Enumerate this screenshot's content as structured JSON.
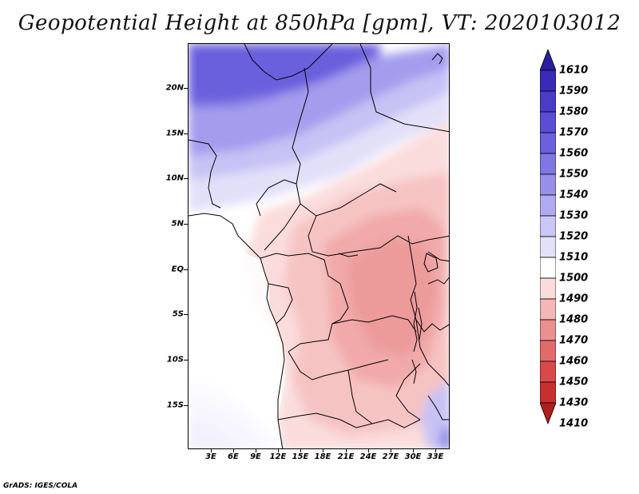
{
  "title": "Geopotential Height at 850hPa [gpm], VT: 2020103012",
  "credit": "GrADS: IGES/COLA",
  "map": {
    "region": "Central Africa",
    "lat_labels": [
      "20N",
      "15N",
      "10N",
      "5N",
      "EQ",
      "5S",
      "10S",
      "15S"
    ],
    "lat_values": [
      20,
      15,
      10,
      5,
      0,
      -5,
      -10,
      -15
    ],
    "lon_labels": [
      "3E",
      "6E",
      "9E",
      "12E",
      "15E",
      "18E",
      "21E",
      "24E",
      "27E",
      "30E",
      "33E"
    ],
    "lon_values": [
      3,
      6,
      9,
      12,
      15,
      18,
      21,
      24,
      27,
      30,
      33
    ],
    "lat_range": [
      -20,
      24.5
    ],
    "lon_range": [
      0.5,
      34.5
    ]
  },
  "colorbar": {
    "levels": [
      "1610",
      "1590",
      "1580",
      "1570",
      "1560",
      "1550",
      "1540",
      "1530",
      "1520",
      "1510",
      "1500",
      "1490",
      "1480",
      "1470",
      "1460",
      "1450",
      "1430",
      "1410"
    ],
    "colors": [
      "#2a1d9e",
      "#3a2ab8",
      "#4a3bc9",
      "#5a4dd6",
      "#6c60de",
      "#8177e4",
      "#978fea",
      "#b0aaf0",
      "#cac6f5",
      "#e3e1fa",
      "#ffffff",
      "#fbdcdc",
      "#f4b6b6",
      "#ec8f8f",
      "#e36a6a",
      "#d84a4a",
      "#c83030",
      "#b01e1e"
    ]
  }
}
